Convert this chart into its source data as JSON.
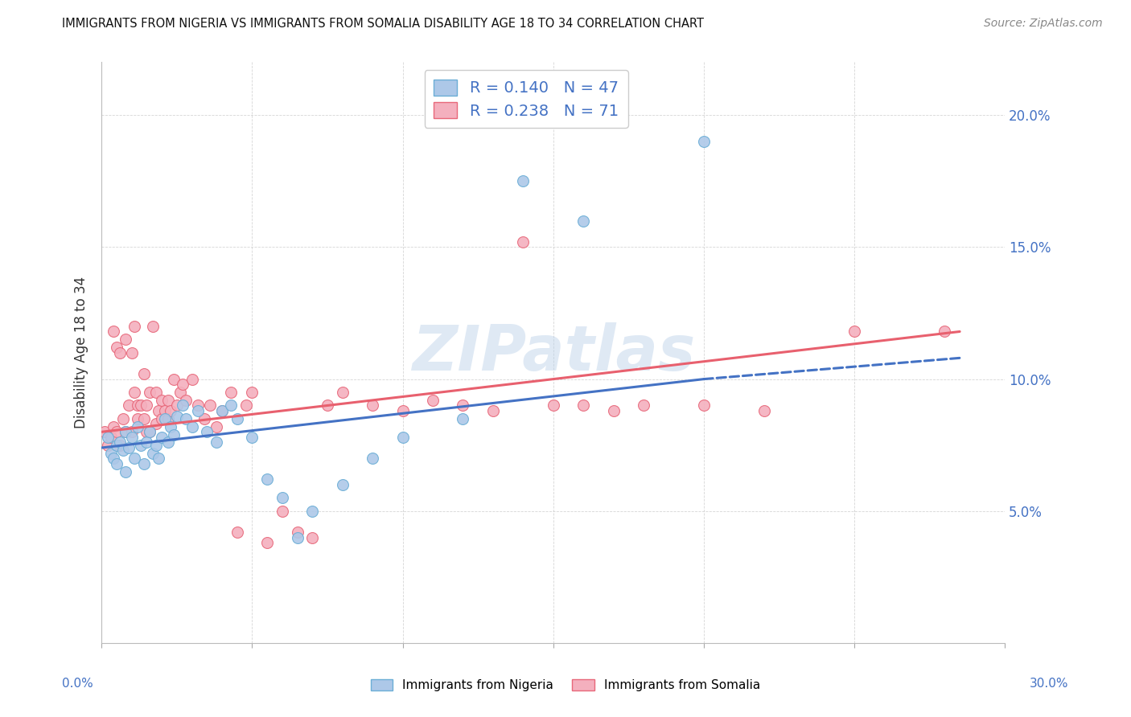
{
  "title": "IMMIGRANTS FROM NIGERIA VS IMMIGRANTS FROM SOMALIA DISABILITY AGE 18 TO 34 CORRELATION CHART",
  "source": "Source: ZipAtlas.com",
  "ylabel": "Disability Age 18 to 34",
  "right_yticks": [
    "20.0%",
    "15.0%",
    "10.0%",
    "5.0%"
  ],
  "right_ytick_vals": [
    0.2,
    0.15,
    0.1,
    0.05
  ],
  "xlim": [
    0.0,
    0.3
  ],
  "ylim": [
    0.0,
    0.22
  ],
  "nigeria_color": "#adc8e8",
  "nigeria_edge": "#6baed6",
  "somalia_color": "#f4b0be",
  "somalia_edge": "#e8687a",
  "nigeria_line_color": "#4472c4",
  "somalia_line_color": "#e8606e",
  "watermark": "ZIPatlas",
  "nigeria_R": 0.14,
  "nigeria_N": 47,
  "somalia_R": 0.238,
  "somalia_N": 71,
  "nigeria_x": [
    0.002,
    0.003,
    0.004,
    0.005,
    0.005,
    0.006,
    0.007,
    0.008,
    0.008,
    0.009,
    0.01,
    0.011,
    0.012,
    0.013,
    0.014,
    0.015,
    0.016,
    0.017,
    0.018,
    0.019,
    0.02,
    0.021,
    0.022,
    0.023,
    0.024,
    0.025,
    0.027,
    0.028,
    0.03,
    0.032,
    0.035,
    0.038,
    0.04,
    0.043,
    0.045,
    0.05,
    0.055,
    0.06,
    0.065,
    0.07,
    0.08,
    0.09,
    0.1,
    0.12,
    0.14,
    0.16,
    0.2
  ],
  "nigeria_y": [
    0.078,
    0.072,
    0.07,
    0.068,
    0.075,
    0.076,
    0.073,
    0.08,
    0.065,
    0.074,
    0.078,
    0.07,
    0.082,
    0.075,
    0.068,
    0.076,
    0.08,
    0.072,
    0.075,
    0.07,
    0.078,
    0.085,
    0.076,
    0.082,
    0.079,
    0.086,
    0.09,
    0.085,
    0.082,
    0.088,
    0.08,
    0.076,
    0.088,
    0.09,
    0.085,
    0.078,
    0.062,
    0.055,
    0.04,
    0.05,
    0.06,
    0.07,
    0.078,
    0.085,
    0.175,
    0.16,
    0.19
  ],
  "somalia_x": [
    0.001,
    0.002,
    0.003,
    0.004,
    0.004,
    0.005,
    0.005,
    0.006,
    0.006,
    0.007,
    0.008,
    0.008,
    0.009,
    0.01,
    0.01,
    0.011,
    0.011,
    0.012,
    0.012,
    0.013,
    0.014,
    0.014,
    0.015,
    0.015,
    0.016,
    0.016,
    0.017,
    0.018,
    0.018,
    0.019,
    0.02,
    0.02,
    0.021,
    0.022,
    0.022,
    0.023,
    0.024,
    0.025,
    0.026,
    0.027,
    0.028,
    0.03,
    0.032,
    0.034,
    0.036,
    0.038,
    0.04,
    0.043,
    0.045,
    0.048,
    0.05,
    0.055,
    0.06,
    0.065,
    0.07,
    0.075,
    0.08,
    0.09,
    0.1,
    0.11,
    0.12,
    0.13,
    0.14,
    0.15,
    0.16,
    0.17,
    0.18,
    0.2,
    0.22,
    0.25,
    0.28
  ],
  "somalia_y": [
    0.08,
    0.075,
    0.078,
    0.082,
    0.118,
    0.112,
    0.08,
    0.11,
    0.075,
    0.085,
    0.115,
    0.08,
    0.09,
    0.11,
    0.08,
    0.12,
    0.095,
    0.085,
    0.09,
    0.09,
    0.085,
    0.102,
    0.08,
    0.09,
    0.08,
    0.095,
    0.12,
    0.083,
    0.095,
    0.088,
    0.085,
    0.092,
    0.088,
    0.085,
    0.092,
    0.088,
    0.1,
    0.09,
    0.095,
    0.098,
    0.092,
    0.1,
    0.09,
    0.085,
    0.09,
    0.082,
    0.088,
    0.095,
    0.042,
    0.09,
    0.095,
    0.038,
    0.05,
    0.042,
    0.04,
    0.09,
    0.095,
    0.09,
    0.088,
    0.092,
    0.09,
    0.088,
    0.152,
    0.09,
    0.09,
    0.088,
    0.09,
    0.09,
    0.088,
    0.118,
    0.118
  ],
  "nigeria_trend_x0": 0.0,
  "nigeria_trend_x_solid_end": 0.2,
  "nigeria_trend_x_dash_end": 0.285,
  "nigeria_trend_y0": 0.074,
  "nigeria_trend_y_solid_end": 0.1,
  "nigeria_trend_y_dash_end": 0.108,
  "somalia_trend_x0": 0.0,
  "somalia_trend_x_end": 0.285,
  "somalia_trend_y0": 0.08,
  "somalia_trend_y_end": 0.118
}
